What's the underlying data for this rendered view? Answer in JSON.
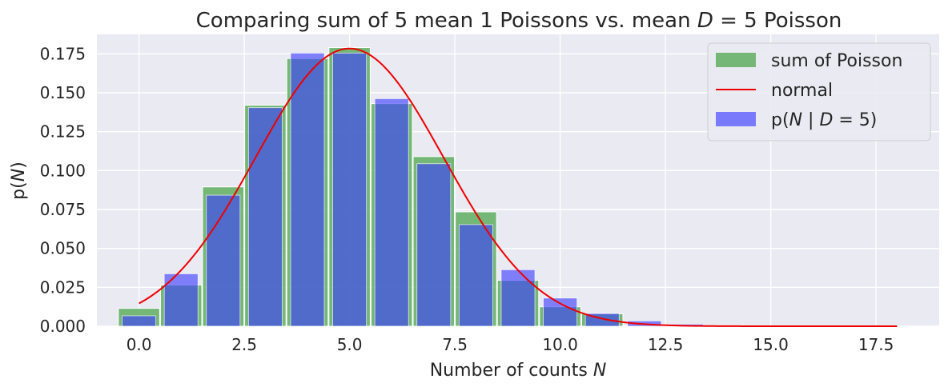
{
  "chart_data": {
    "type": "bar",
    "title_plain": "Comparing sum of 5 mean 1 Poissons vs. mean ",
    "title_var": "D",
    "title_tail": " = 5 Poisson",
    "xlabel_plain": "Number of counts ",
    "xlabel_var": "N",
    "ylabel_plain_a": "p(",
    "ylabel_var": "N",
    "ylabel_plain_b": ")",
    "xlim": [
      -1.0,
      19.0
    ],
    "ylim": [
      0.0,
      0.1875
    ],
    "x_ticks": [
      0.0,
      2.5,
      5.0,
      7.5,
      10.0,
      12.5,
      15.0,
      17.5
    ],
    "x_tick_labels": [
      "0.0",
      "2.5",
      "5.0",
      "7.5",
      "10.0",
      "12.5",
      "15.0",
      "17.5"
    ],
    "y_ticks": [
      0.0,
      0.025,
      0.05,
      0.075,
      0.1,
      0.125,
      0.15,
      0.175
    ],
    "y_tick_labels": [
      "0.000",
      "0.025",
      "0.050",
      "0.075",
      "0.100",
      "0.125",
      "0.150",
      "0.175"
    ],
    "grid": true,
    "legend_position": "top-right",
    "colors": {
      "background": "#eaeaf2",
      "grid": "#ffffff",
      "sum_bars": "#4ca64c",
      "poisson_bars": "#3c3cff",
      "normal_line": "#ee0000",
      "overlap": "#3c4bb2"
    },
    "series": [
      {
        "name": "sum of Poisson",
        "kind": "bar",
        "bar_width": 0.98,
        "x": [
          0,
          1,
          2,
          3,
          4,
          5,
          6,
          7,
          8,
          9,
          10,
          11
        ],
        "values": [
          0.0115,
          0.0265,
          0.0895,
          0.142,
          0.172,
          0.179,
          0.143,
          0.109,
          0.0735,
          0.0295,
          0.0125,
          0.008
        ]
      },
      {
        "name": "normal",
        "kind": "line",
        "mean": 5,
        "sd": 2.236,
        "x_range": [
          0,
          18
        ]
      },
      {
        "name_plain": "p(",
        "name_var1": "N",
        "name_mid": " | ",
        "name_var2": "D",
        "name_tail": " = 5)",
        "kind": "bar",
        "bar_width": 0.8,
        "x": [
          0,
          1,
          2,
          3,
          4,
          5,
          6,
          7,
          8,
          9,
          10,
          11,
          12,
          13,
          14,
          15,
          16,
          17,
          18
        ],
        "values": [
          0.0067,
          0.0337,
          0.0842,
          0.1404,
          0.1755,
          0.1755,
          0.1462,
          0.1044,
          0.0653,
          0.0363,
          0.0181,
          0.0082,
          0.0034,
          0.0013,
          0.0005,
          0.0002,
          0.0001,
          0.0,
          0.0
        ]
      }
    ]
  }
}
